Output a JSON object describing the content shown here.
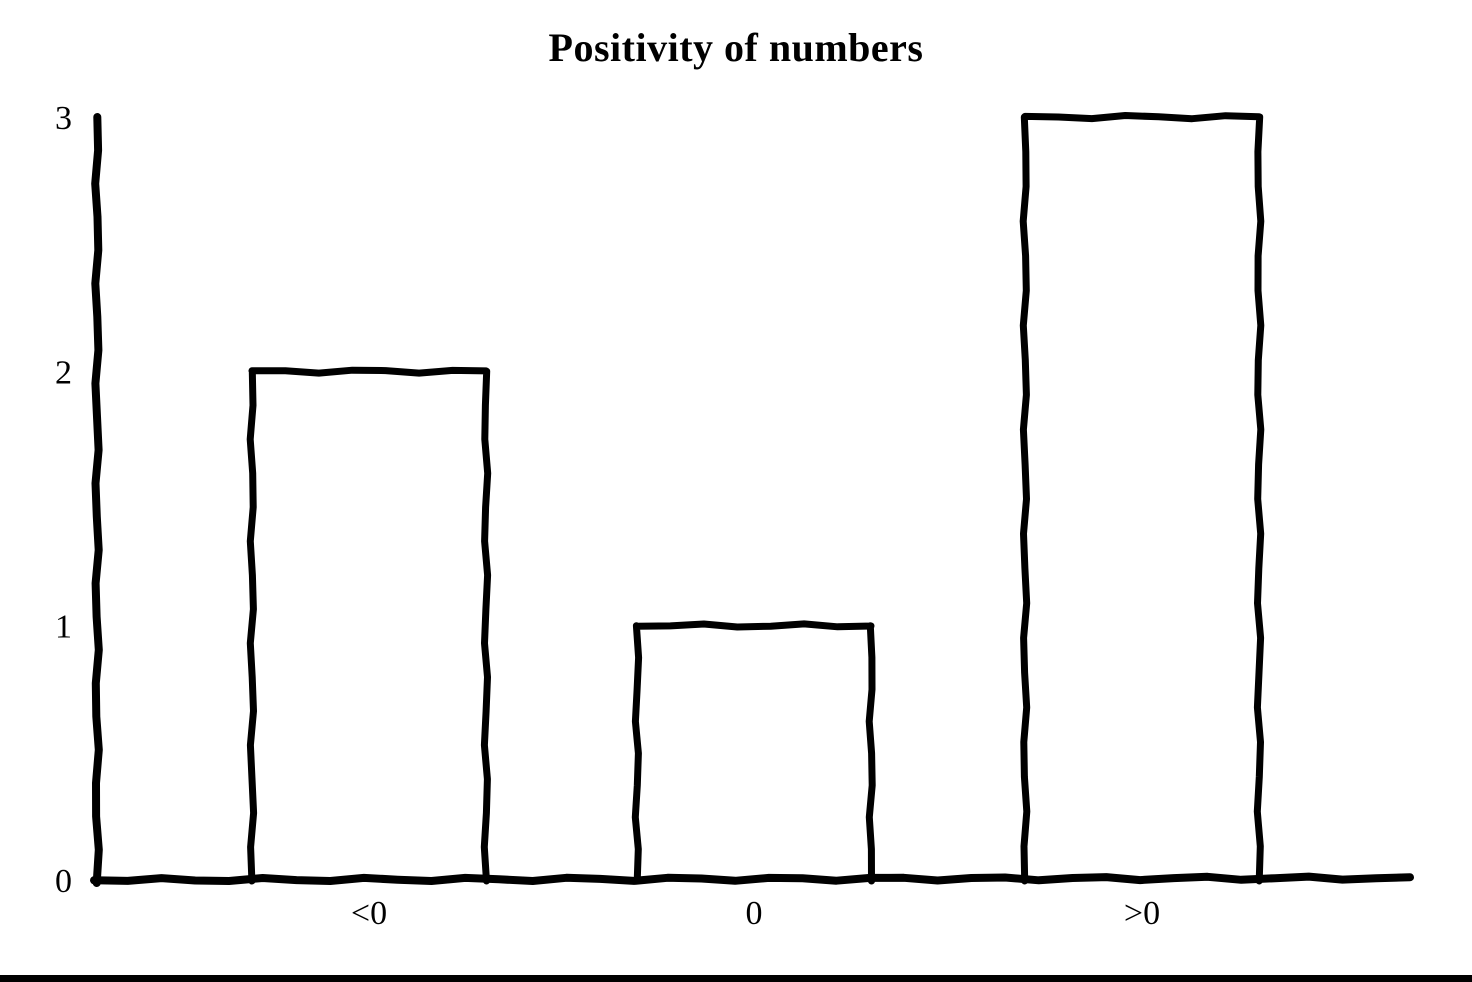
{
  "chart_data": {
    "type": "bar",
    "title": "Positivity of numbers",
    "categories": [
      "<0",
      "0",
      ">0"
    ],
    "values": [
      2,
      1,
      3
    ],
    "yticks": [
      "0",
      "1",
      "2",
      "3"
    ],
    "ylim": [
      0,
      3
    ],
    "xlabel": "",
    "ylabel": "",
    "grid": false,
    "legend": "none",
    "style": "hand-drawn sketch, outlined bars",
    "bar_fill": "#ffffff",
    "stroke_color": "#000000",
    "background": "#ffffff"
  }
}
